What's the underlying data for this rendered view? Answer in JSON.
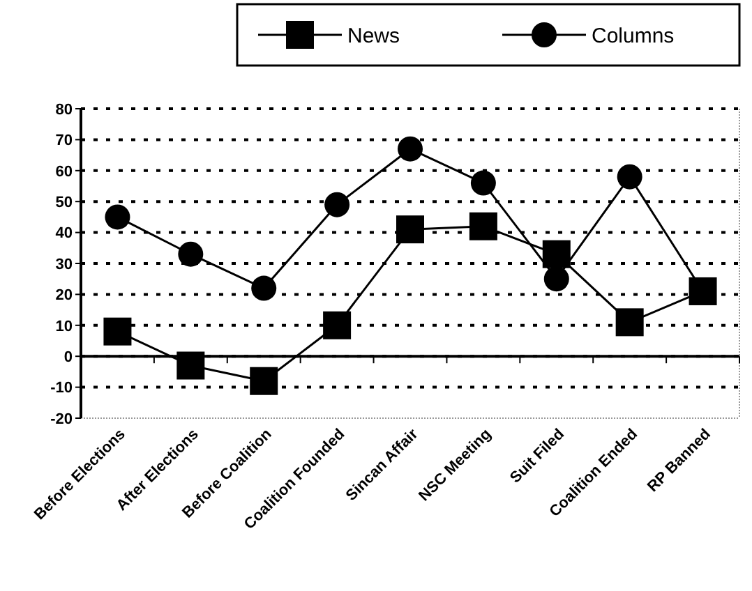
{
  "chart_data": {
    "type": "line",
    "categories": [
      "Before Elections",
      "After Elections",
      "Before Coalition",
      "Coalition Founded",
      "Sincan Affair",
      "NSC Meeting",
      "Suit Filed",
      "Coalition Ended",
      "RP Banned"
    ],
    "series": [
      {
        "name": "News",
        "color": "#000000",
        "marker": "square",
        "values": [
          8,
          -3,
          -8,
          10,
          41,
          42,
          33,
          11,
          21
        ]
      },
      {
        "name": "Columns",
        "color": "#000000",
        "marker": "circle",
        "values": [
          45,
          33,
          22,
          49,
          67,
          56,
          25,
          58,
          21
        ]
      }
    ],
    "ylim": [
      -20,
      80
    ],
    "yticks": [
      -20,
      -10,
      0,
      10,
      20,
      30,
      40,
      50,
      60,
      70,
      80
    ],
    "grid": "y",
    "legend": "top right"
  }
}
